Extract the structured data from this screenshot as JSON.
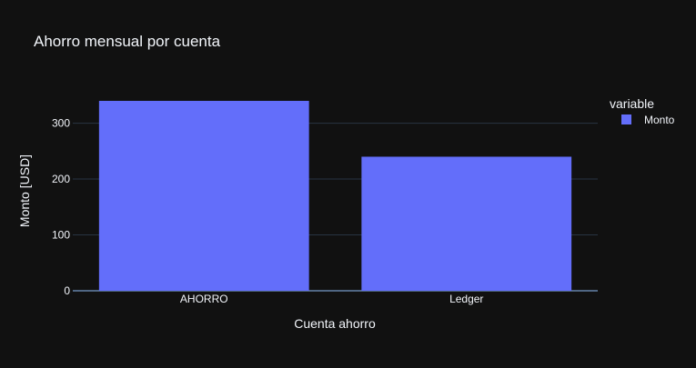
{
  "chart_data": {
    "type": "bar",
    "title": "Ahorro mensual por cuenta",
    "xlabel": "Cuenta ahorro",
    "ylabel": "Monto [USD]",
    "categories": [
      "AHORRO",
      "Ledger"
    ],
    "series": [
      {
        "name": "Monto",
        "values": [
          340,
          240
        ],
        "color": "#636efa"
      }
    ],
    "ylim": [
      0,
      357.9
    ],
    "yticks": [
      0,
      100,
      200,
      300
    ],
    "grid": true,
    "legend": {
      "title": "variable",
      "placement": "right"
    }
  },
  "colors": {
    "background": "#111111",
    "grid": "#283442",
    "text": "#f2f5fa"
  }
}
